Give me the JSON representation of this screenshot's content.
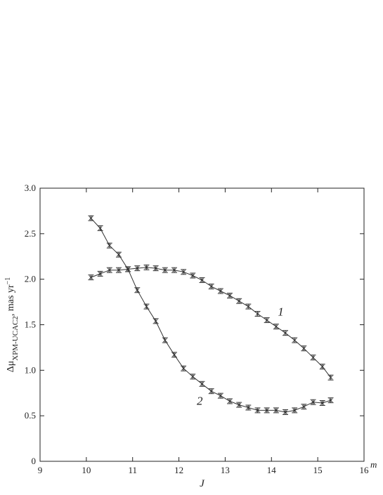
{
  "chart_data": {
    "type": "line",
    "xlabel": "J",
    "x_unit_sup": "m",
    "ylabel": {
      "prefix": "Δμ",
      "subscript": "XPM-UCAC2",
      "suffix": ", mas yr",
      "sup": "−1"
    },
    "xlim": [
      9,
      16
    ],
    "ylim": [
      0,
      3.0
    ],
    "xticks": [
      "9",
      "10",
      "11",
      "12",
      "13",
      "14",
      "15",
      "16"
    ],
    "yticks": [
      "0",
      "0.5",
      "1.0",
      "1.5",
      "2.0",
      "2.5",
      "3.0"
    ],
    "grid": false,
    "series": [
      {
        "name": "1",
        "x": [
          10.1,
          10.3,
          10.5,
          10.7,
          10.9,
          11.1,
          11.3,
          11.5,
          11.7,
          11.9,
          12.1,
          12.3,
          12.5,
          12.7,
          12.9,
          13.1,
          13.3,
          13.5,
          13.7,
          13.9,
          14.1,
          14.3,
          14.5,
          14.7,
          14.9,
          15.1,
          15.28
        ],
        "y": [
          2.02,
          2.06,
          2.1,
          2.1,
          2.11,
          2.12,
          2.13,
          2.12,
          2.1,
          2.1,
          2.08,
          2.04,
          1.99,
          1.92,
          1.87,
          1.82,
          1.76,
          1.7,
          1.62,
          1.55,
          1.48,
          1.41,
          1.33,
          1.24,
          1.14,
          1.04,
          0.92
        ]
      },
      {
        "name": "2",
        "x": [
          10.1,
          10.3,
          10.5,
          10.7,
          10.9,
          11.1,
          11.3,
          11.5,
          11.7,
          11.9,
          12.1,
          12.3,
          12.5,
          12.7,
          12.9,
          13.1,
          13.3,
          13.5,
          13.7,
          13.9,
          14.1,
          14.3,
          14.5,
          14.7,
          14.9,
          15.1,
          15.28
        ],
        "y": [
          2.67,
          2.56,
          2.37,
          2.27,
          2.11,
          1.88,
          1.7,
          1.54,
          1.33,
          1.17,
          1.02,
          0.93,
          0.85,
          0.77,
          0.72,
          0.66,
          0.62,
          0.59,
          0.56,
          0.56,
          0.56,
          0.54,
          0.56,
          0.6,
          0.65,
          0.64,
          0.67
        ]
      }
    ],
    "annotations": [
      {
        "text": "1",
        "x": 14.2,
        "y": 1.6
      },
      {
        "text": "2",
        "x": 12.45,
        "y": 0.62
      }
    ],
    "line_color": "#333333"
  }
}
